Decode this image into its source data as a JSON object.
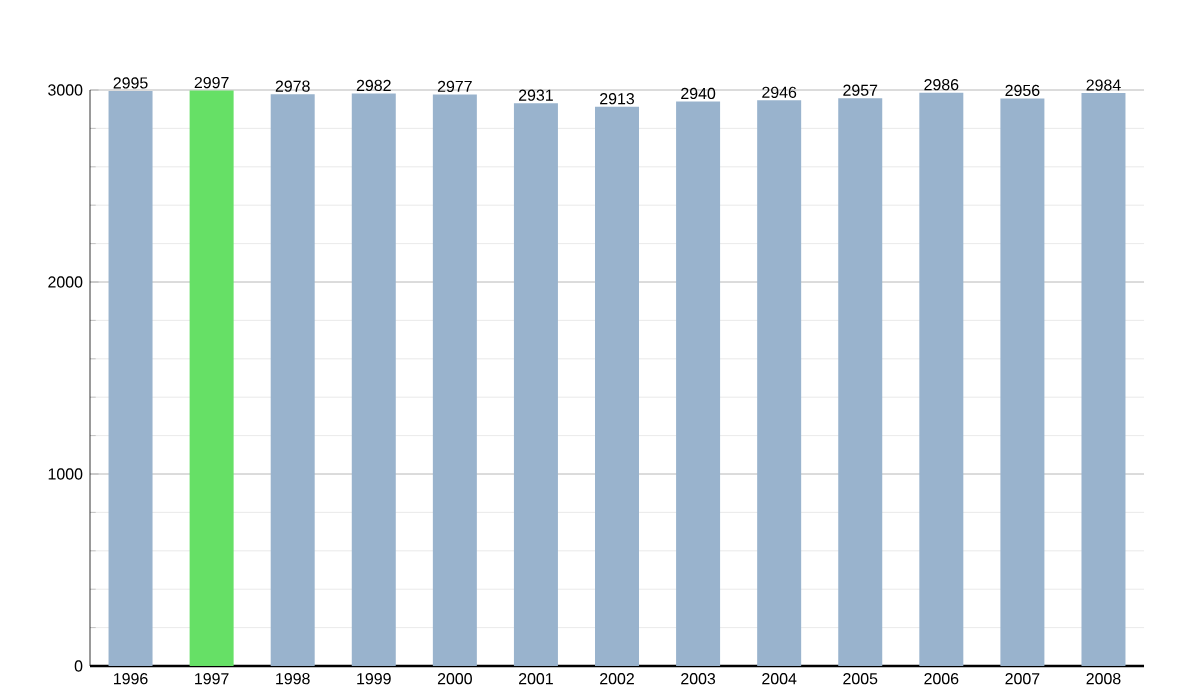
{
  "chart_data": {
    "type": "bar",
    "categories": [
      "1996",
      "1997",
      "1998",
      "1999",
      "2000",
      "2001",
      "2002",
      "2003",
      "2004",
      "2005",
      "2006",
      "2007",
      "2008"
    ],
    "values": [
      2995,
      2997,
      2978,
      2982,
      2977,
      2931,
      2913,
      2940,
      2946,
      2957,
      2986,
      2956,
      2984
    ],
    "colors": [
      "#99b3cd",
      "#66e066",
      "#99b3cd",
      "#99b3cd",
      "#99b3cd",
      "#99b3cd",
      "#99b3cd",
      "#99b3cd",
      "#99b3cd",
      "#99b3cd",
      "#99b3cd",
      "#99b3cd",
      "#99b3cd"
    ],
    "ylim": [
      0,
      3000
    ],
    "yticks": [
      0,
      1000,
      2000,
      3000
    ],
    "grid": "y",
    "data_labels": true
  }
}
